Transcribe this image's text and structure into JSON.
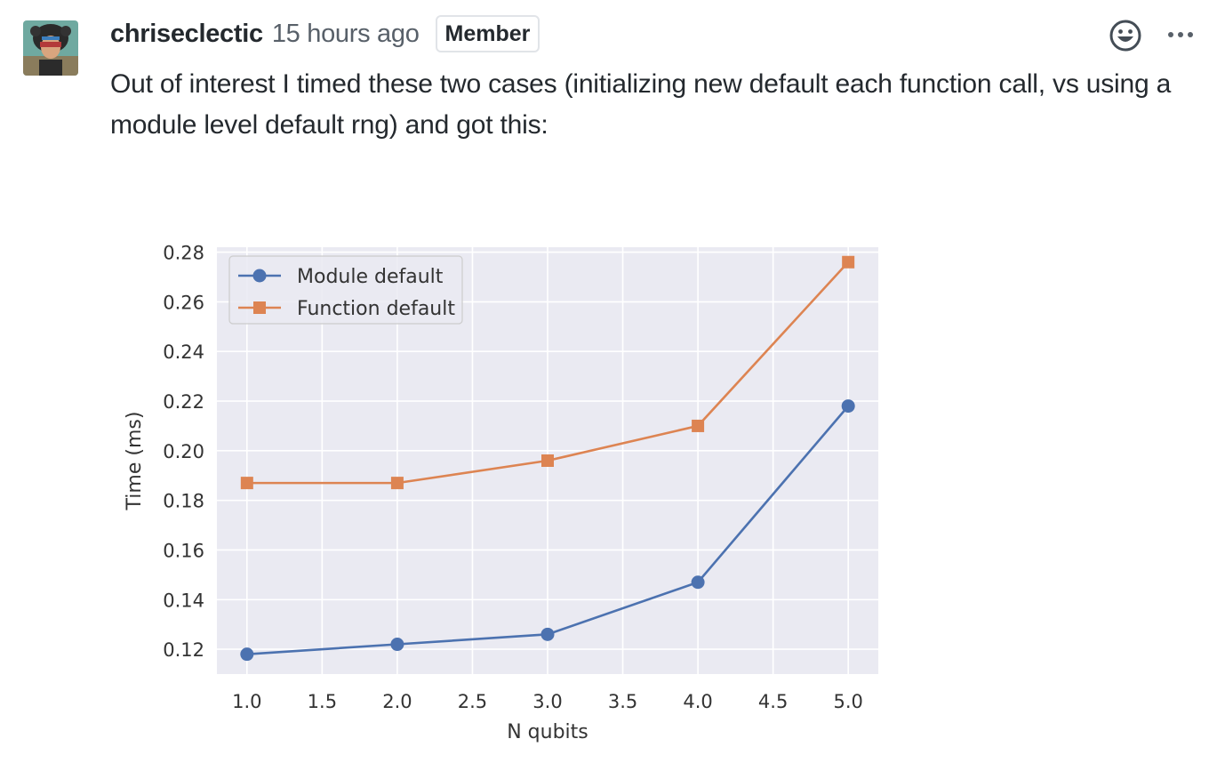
{
  "comment": {
    "author": "chriseclectic",
    "timestamp": "15 hours ago",
    "badge": "Member",
    "body": "Out of interest I timed these two cases (initializing new default each function call, vs using a module level default rng) and got this:"
  },
  "actions": {
    "reaction_icon": "smiley-icon",
    "more_icon": "kebab-horizontal-icon"
  },
  "colors": {
    "plot_background": "#eaeaf2",
    "grid": "#ffffff",
    "module_series": "#4c72b0",
    "function_series": "#dd8452"
  },
  "chart_data": {
    "type": "line",
    "title": "",
    "xlabel": "N qubits",
    "ylabel": "Time (ms)",
    "xlim": [
      0.8,
      5.2
    ],
    "ylim": [
      0.11,
      0.282
    ],
    "xticks": [
      "1.0",
      "1.5",
      "2.0",
      "2.5",
      "3.0",
      "3.5",
      "4.0",
      "4.5",
      "5.0"
    ],
    "yticks": [
      "0.12",
      "0.14",
      "0.16",
      "0.18",
      "0.20",
      "0.22",
      "0.24",
      "0.26",
      "0.28"
    ],
    "grid": true,
    "legend_position": "top-left",
    "x": [
      1.0,
      2.0,
      3.0,
      4.0,
      5.0
    ],
    "series": [
      {
        "name": "Module default",
        "marker": "circle",
        "values": [
          0.118,
          0.122,
          0.126,
          0.147,
          0.218
        ]
      },
      {
        "name": "Function default",
        "marker": "square",
        "values": [
          0.187,
          0.187,
          0.196,
          0.21,
          0.276
        ]
      }
    ]
  }
}
